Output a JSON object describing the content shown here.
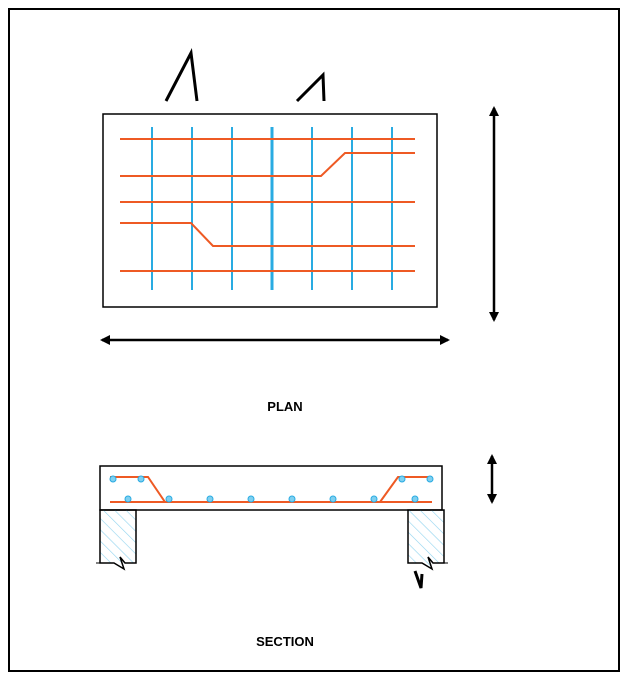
{
  "labels": {
    "plan": "PLAN",
    "section": "SECTION"
  },
  "colors": {
    "outline": "#000000",
    "main_bar": "#ee5a24",
    "distribution_bar": "#29abe2",
    "hatch": "#8fd3ef"
  }
}
